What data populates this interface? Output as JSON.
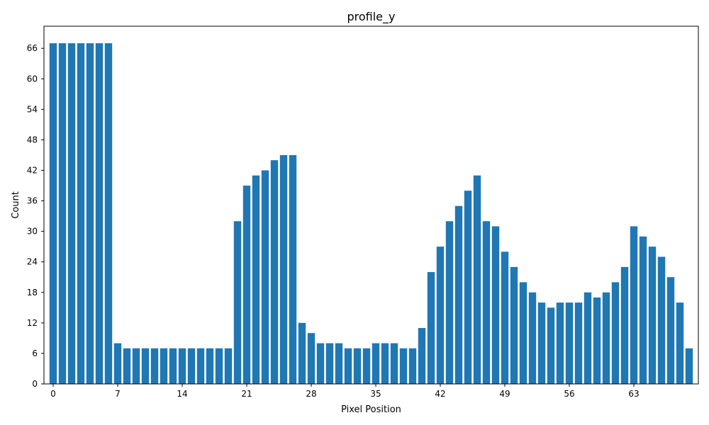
{
  "chart_data": {
    "type": "bar",
    "title": "profile_y",
    "xlabel": "Pixel Position",
    "ylabel": "Count",
    "x": [
      0,
      1,
      2,
      3,
      4,
      5,
      6,
      7,
      8,
      9,
      10,
      11,
      12,
      13,
      14,
      15,
      16,
      17,
      18,
      19,
      20,
      21,
      22,
      23,
      24,
      25,
      26,
      27,
      28,
      29,
      30,
      31,
      32,
      33,
      34,
      35,
      36,
      37,
      38,
      39,
      40,
      41,
      42,
      43,
      44,
      45,
      46,
      47,
      48,
      49,
      50,
      51,
      52,
      53,
      54,
      55,
      56,
      57,
      58,
      59,
      60,
      61,
      62,
      63,
      64,
      65,
      66,
      67,
      68,
      69
    ],
    "values": [
      67,
      67,
      67,
      67,
      67,
      67,
      67,
      8,
      7,
      7,
      7,
      7,
      7,
      7,
      7,
      7,
      7,
      7,
      7,
      7,
      32,
      39,
      41,
      42,
      44,
      45,
      45,
      12,
      10,
      8,
      8,
      8,
      7,
      7,
      7,
      8,
      8,
      8,
      7,
      7,
      11,
      22,
      27,
      32,
      35,
      38,
      41,
      32,
      31,
      26,
      23,
      20,
      18,
      16,
      15,
      16,
      16,
      16,
      18,
      17,
      18,
      20,
      23,
      31,
      29,
      27,
      25,
      21,
      16,
      7
    ],
    "xticks": [
      0,
      7,
      14,
      21,
      28,
      35,
      42,
      49,
      56,
      63
    ],
    "yticks": [
      0,
      6,
      12,
      18,
      24,
      30,
      36,
      42,
      48,
      54,
      60,
      66
    ],
    "xlim": [
      -1,
      70
    ],
    "ylim": [
      0,
      70.35
    ],
    "bar_color": "#1f77b4",
    "grid": false
  }
}
